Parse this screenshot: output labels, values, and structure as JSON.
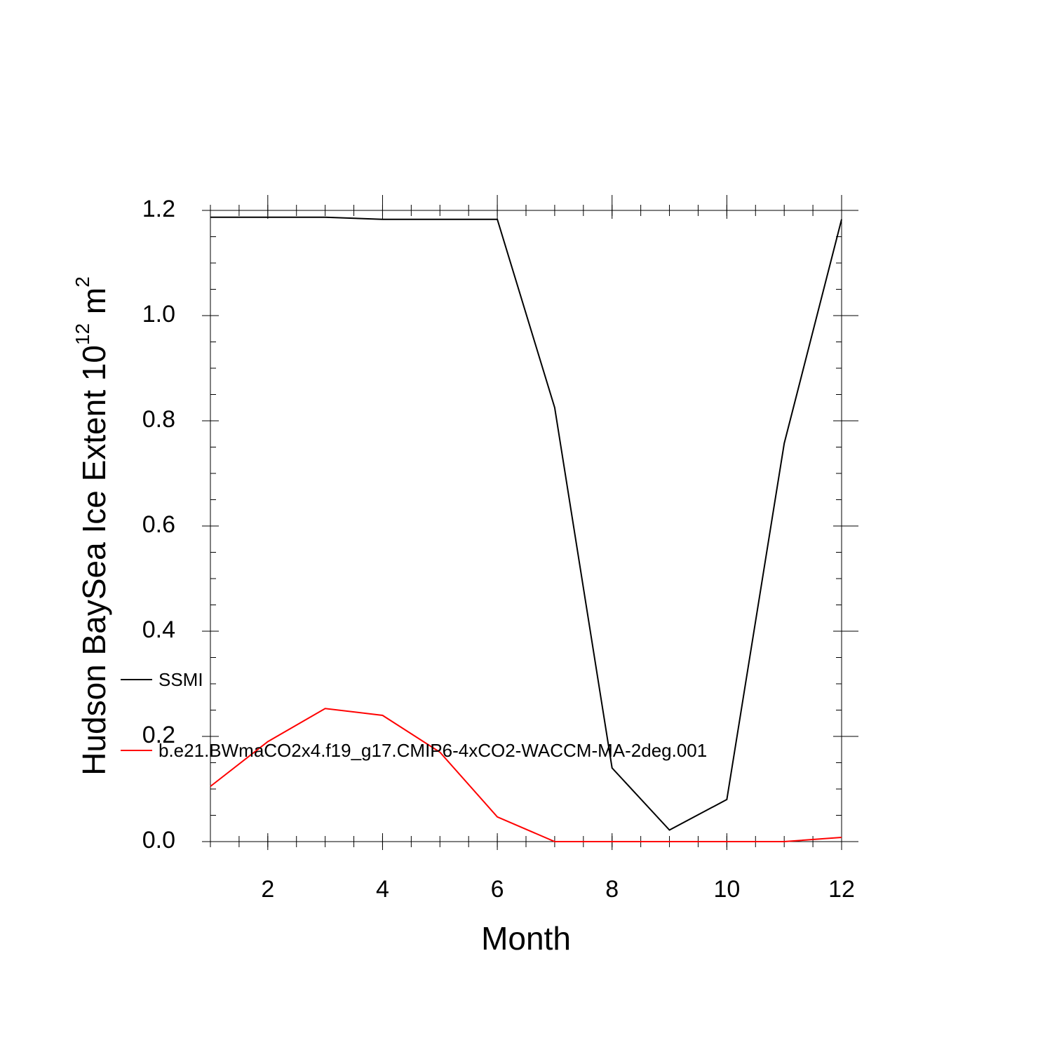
{
  "chart_data": {
    "type": "line",
    "ylabel": [
      "Hudson BaySea Ice Extent 10",
      "12",
      " m",
      "2"
    ],
    "xlabel": "Month",
    "x": [
      1,
      2,
      3,
      4,
      5,
      6,
      7,
      8,
      9,
      10,
      11,
      12
    ],
    "series": [
      {
        "name": "SSMI",
        "color": "#000000",
        "values": [
          1.187,
          1.187,
          1.187,
          1.183,
          1.183,
          1.183,
          0.825,
          0.14,
          0.022,
          0.08,
          0.757,
          1.183
        ]
      },
      {
        "name": "b.e21.BWmaCO2x4.f19_g17.CMIP6-4xCO2-WACCM-MA-2deg.001",
        "color": "#ff0000",
        "values": [
          0.105,
          0.19,
          0.253,
          0.24,
          0.17,
          0.047,
          0,
          0,
          0,
          0,
          0,
          0.008
        ]
      }
    ],
    "xlim": [
      1,
      12
    ],
    "xticks": [
      2,
      4,
      6,
      8,
      10,
      12
    ],
    "ylim": [
      0,
      1.2
    ],
    "yticks": [
      {
        "value": 0,
        "label": "0.0"
      },
      {
        "value": 0.2,
        "label": "0.2"
      },
      {
        "value": 0.4,
        "label": "0.4"
      },
      {
        "value": 0.6,
        "label": "0.6"
      },
      {
        "value": 0.8,
        "label": "0.8"
      },
      {
        "value": 1,
        "label": "1.0"
      },
      {
        "value": 1.2,
        "label": "1.2"
      }
    ],
    "legend": "left"
  }
}
